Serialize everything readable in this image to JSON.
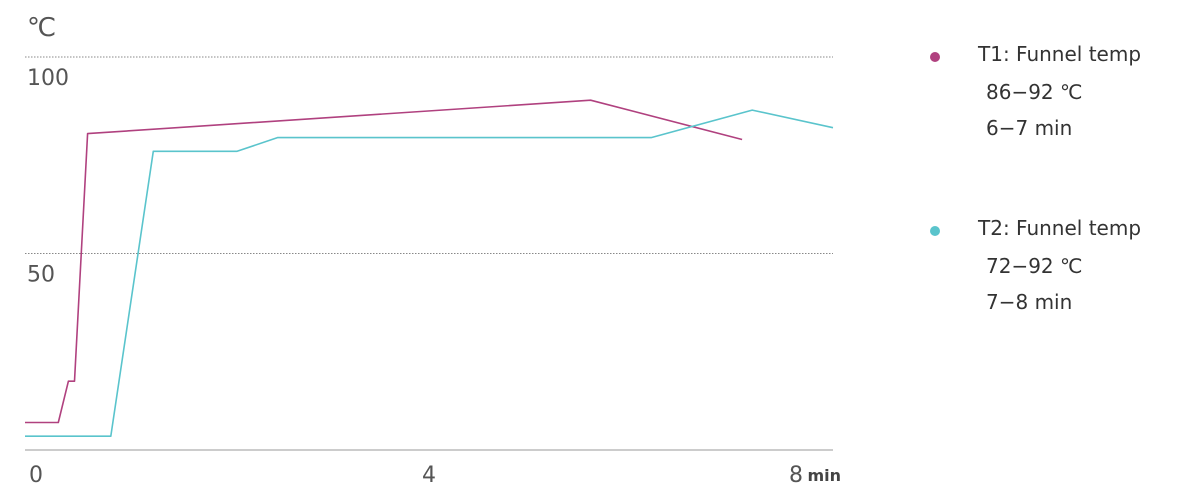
{
  "chart_data": {
    "type": "line",
    "y_unit_label": "℃",
    "x_unit_label": "min",
    "ylim": [
      0,
      105
    ],
    "xlim": [
      0,
      8
    ],
    "y_ticks": [
      50,
      100
    ],
    "y_tick_labels": [
      "50",
      "100"
    ],
    "x_ticks": [
      0,
      4,
      8
    ],
    "x_tick_labels": [
      "0",
      "4",
      "8"
    ],
    "grid": "dotted horizontal at 50 and 100",
    "legend_position": "right",
    "series": [
      {
        "name": "T1: Funnel temp",
        "detail_lines": [
          "86−92 ℃",
          "6−7 min"
        ],
        "color": "#b0417f",
        "points": [
          [
            0,
            7
          ],
          [
            0.33,
            7
          ],
          [
            0.43,
            17.5
          ],
          [
            0.49,
            17.5
          ],
          [
            0.62,
            80.5
          ],
          [
            5.6,
            89
          ],
          [
            7.1,
            79
          ]
        ]
      },
      {
        "name": "T2: Funnel temp",
        "detail_lines": [
          "72−92 ℃",
          "7−8 min"
        ],
        "color": "#5ac4cc",
        "points": [
          [
            0,
            3.5
          ],
          [
            0.85,
            3.5
          ],
          [
            1.27,
            76
          ],
          [
            2.1,
            76
          ],
          [
            2.5,
            79.5
          ],
          [
            6.2,
            79.5
          ],
          [
            7.2,
            86.5
          ],
          [
            8,
            82
          ]
        ]
      }
    ]
  }
}
